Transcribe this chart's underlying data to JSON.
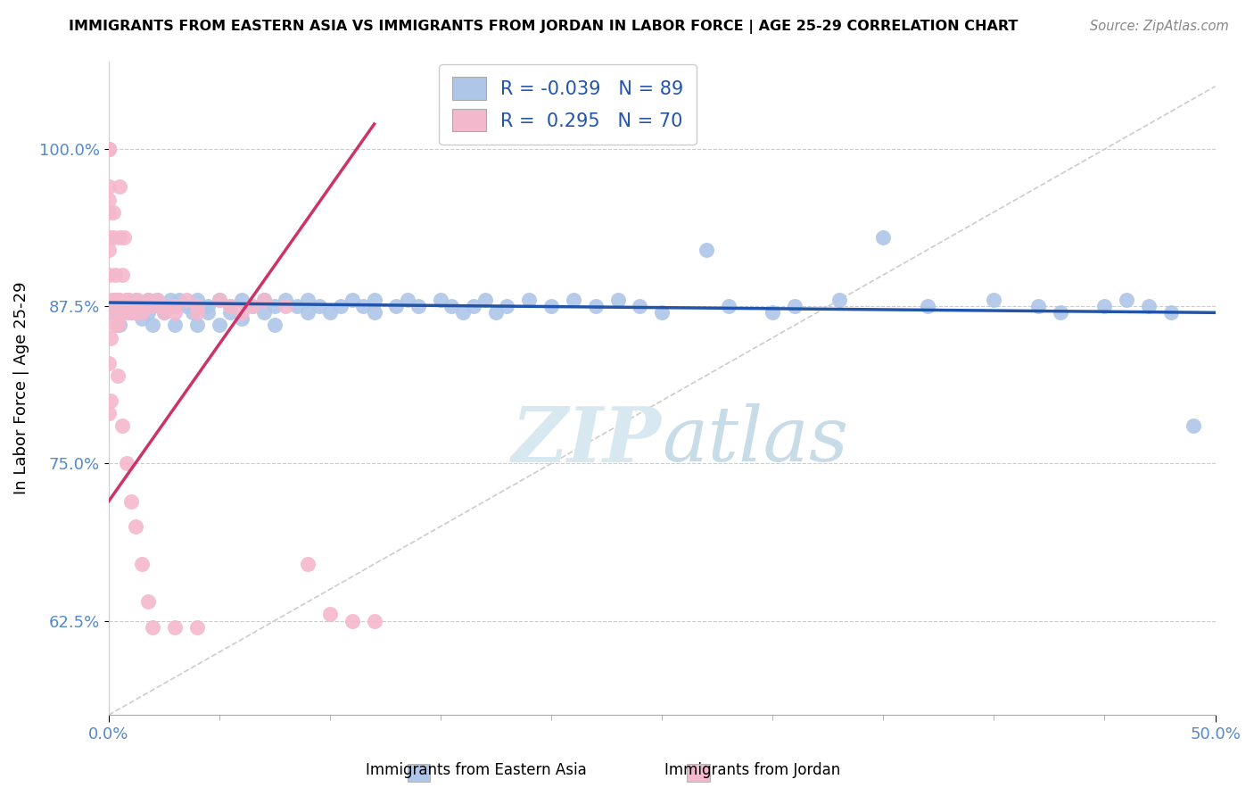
{
  "title": "IMMIGRANTS FROM EASTERN ASIA VS IMMIGRANTS FROM JORDAN IN LABOR FORCE | AGE 25-29 CORRELATION CHART",
  "source": "Source: ZipAtlas.com",
  "ylabel": "In Labor Force | Age 25-29",
  "legend_blue_R": "-0.039",
  "legend_blue_N": "89",
  "legend_pink_R": "0.295",
  "legend_pink_N": "70",
  "blue_color": "#aec6e8",
  "pink_color": "#f4b8cc",
  "blue_line_color": "#2255aa",
  "pink_line_color": "#cc3366",
  "diag_line_color": "#cccccc",
  "tick_color": "#5588cc",
  "watermark_color": "#d8e8f0",
  "xlim": [
    0.0,
    0.5
  ],
  "ylim": [
    0.55,
    1.07
  ],
  "y_ticks": [
    0.625,
    0.75,
    0.875,
    1.0
  ],
  "y_tick_labels": [
    "62.5%",
    "75.0%",
    "87.5%",
    "100.0%"
  ],
  "blue_line_x": [
    0.0,
    0.5
  ],
  "blue_line_y": [
    0.878,
    0.87
  ],
  "pink_line_x": [
    0.0,
    0.12
  ],
  "pink_line_y": [
    0.72,
    1.02
  ],
  "diag_line_x": [
    0.0,
    0.5
  ],
  "diag_line_y": [
    0.55,
    1.05
  ],
  "blue_x": [
    0.005,
    0.005,
    0.008,
    0.01,
    0.01,
    0.012,
    0.015,
    0.015,
    0.018,
    0.018,
    0.02,
    0.02,
    0.022,
    0.025,
    0.025,
    0.028,
    0.03,
    0.03,
    0.032,
    0.035,
    0.038,
    0.04,
    0.04,
    0.045,
    0.045,
    0.05,
    0.05,
    0.055,
    0.055,
    0.06,
    0.06,
    0.065,
    0.07,
    0.07,
    0.075,
    0.075,
    0.08,
    0.085,
    0.09,
    0.09,
    0.095,
    0.1,
    0.105,
    0.11,
    0.115,
    0.12,
    0.12,
    0.13,
    0.135,
    0.14,
    0.15,
    0.155,
    0.16,
    0.165,
    0.17,
    0.175,
    0.18,
    0.19,
    0.2,
    0.21,
    0.22,
    0.23,
    0.24,
    0.25,
    0.27,
    0.28,
    0.3,
    0.31,
    0.33,
    0.35,
    0.37,
    0.4,
    0.42,
    0.43,
    0.45,
    0.46,
    0.47,
    0.48,
    0.49,
    0.0,
    0.0,
    0.002,
    0.003,
    0.004,
    0.006,
    0.007,
    0.009,
    0.011,
    0.013
  ],
  "blue_y": [
    0.875,
    0.86,
    0.88,
    0.875,
    0.87,
    0.88,
    0.875,
    0.865,
    0.88,
    0.87,
    0.875,
    0.86,
    0.88,
    0.875,
    0.87,
    0.88,
    0.875,
    0.86,
    0.88,
    0.875,
    0.87,
    0.88,
    0.86,
    0.875,
    0.87,
    0.88,
    0.86,
    0.875,
    0.87,
    0.88,
    0.865,
    0.875,
    0.88,
    0.87,
    0.875,
    0.86,
    0.88,
    0.875,
    0.87,
    0.88,
    0.875,
    0.87,
    0.875,
    0.88,
    0.875,
    0.87,
    0.88,
    0.875,
    0.88,
    0.875,
    0.88,
    0.875,
    0.87,
    0.875,
    0.88,
    0.87,
    0.875,
    0.88,
    0.875,
    0.88,
    0.875,
    0.88,
    0.875,
    0.87,
    0.92,
    0.875,
    0.87,
    0.875,
    0.88,
    0.93,
    0.875,
    0.88,
    0.875,
    0.87,
    0.875,
    0.88,
    0.875,
    0.87,
    0.78,
    0.875,
    0.87,
    0.88,
    0.875,
    0.88,
    0.875,
    0.87,
    0.88,
    0.875,
    0.875
  ],
  "pink_x": [
    0.0,
    0.0,
    0.0,
    0.0,
    0.0,
    0.0,
    0.0,
    0.0,
    0.0,
    0.0,
    0.002,
    0.002,
    0.003,
    0.003,
    0.004,
    0.004,
    0.005,
    0.005,
    0.005,
    0.006,
    0.006,
    0.007,
    0.007,
    0.008,
    0.008,
    0.009,
    0.009,
    0.01,
    0.01,
    0.011,
    0.012,
    0.013,
    0.015,
    0.015,
    0.018,
    0.02,
    0.022,
    0.025,
    0.025,
    0.03,
    0.03,
    0.035,
    0.04,
    0.04,
    0.05,
    0.055,
    0.06,
    0.065,
    0.07,
    0.08,
    0.09,
    0.1,
    0.11,
    0.12,
    0.0,
    0.0,
    0.001,
    0.001,
    0.002,
    0.003,
    0.004,
    0.006,
    0.008,
    0.01,
    0.012,
    0.015,
    0.018,
    0.02,
    0.03,
    0.04
  ],
  "pink_y": [
    1.0,
    1.0,
    1.0,
    0.97,
    0.96,
    0.95,
    0.93,
    0.92,
    0.9,
    0.88,
    0.95,
    0.93,
    0.9,
    0.88,
    0.88,
    0.86,
    0.97,
    0.93,
    0.88,
    0.9,
    0.87,
    0.93,
    0.87,
    0.88,
    0.87,
    0.88,
    0.875,
    0.875,
    0.87,
    0.875,
    0.87,
    0.88,
    0.875,
    0.87,
    0.88,
    0.875,
    0.88,
    0.875,
    0.87,
    0.875,
    0.87,
    0.88,
    0.875,
    0.87,
    0.88,
    0.875,
    0.87,
    0.875,
    0.88,
    0.875,
    0.67,
    0.63,
    0.625,
    0.625,
    0.83,
    0.79,
    0.85,
    0.8,
    0.87,
    0.86,
    0.82,
    0.78,
    0.75,
    0.72,
    0.7,
    0.67,
    0.64,
    0.62,
    0.62,
    0.62
  ]
}
